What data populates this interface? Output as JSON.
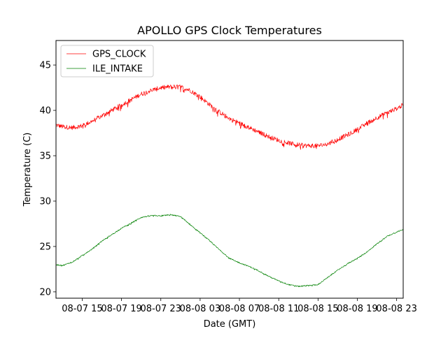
{
  "chart_data": {
    "type": "line",
    "title": "APOLLO GPS Clock Temperatures",
    "xlabel": "Date (GMT)",
    "ylabel": "Temperature (C)",
    "xlim": [
      "08-07 12:20",
      "08-08 23:40"
    ],
    "ylim": [
      19.3,
      47.7
    ],
    "x_ticks": [
      {
        "t": "08-07 15:00",
        "label": "08-07 15"
      },
      {
        "t": "08-07 19:00",
        "label": "08-07 19"
      },
      {
        "t": "08-07 23:00",
        "label": "08-07 23"
      },
      {
        "t": "08-08 03:00",
        "label": "08-08 03"
      },
      {
        "t": "08-08 07:00",
        "label": "08-08 07"
      },
      {
        "t": "08-08 11:00",
        "label": "08-08 11"
      },
      {
        "t": "08-08 15:00",
        "label": "08-08 15"
      },
      {
        "t": "08-08 19:00",
        "label": "08-08 19"
      },
      {
        "t": "08-08 23:00",
        "label": "08-08 23"
      }
    ],
    "y_ticks": [
      20,
      25,
      30,
      35,
      40,
      45
    ],
    "grid": false,
    "legend": "top-left",
    "series": [
      {
        "name": "GPS_CLOCK",
        "color": "#ff0000",
        "noise": 0.5,
        "x": [
          "08-07 12:20",
          "08-07 13:00",
          "08-07 14:00",
          "08-07 15:00",
          "08-07 16:00",
          "08-07 17:00",
          "08-07 18:00",
          "08-07 19:00",
          "08-07 20:00",
          "08-07 21:00",
          "08-07 22:00",
          "08-07 23:00",
          "08-08 00:00",
          "08-08 01:00",
          "08-08 02:00",
          "08-08 03:00",
          "08-08 04:00",
          "08-08 05:00",
          "08-08 06:00",
          "08-08 07:00",
          "08-08 08:00",
          "08-08 09:00",
          "08-08 10:00",
          "08-08 11:00",
          "08-08 12:00",
          "08-08 13:00",
          "08-08 14:00",
          "08-08 15:00",
          "08-08 16:00",
          "08-08 17:00",
          "08-08 18:00",
          "08-08 19:00",
          "08-08 20:00",
          "08-08 21:00",
          "08-08 22:00",
          "08-08 23:00",
          "08-08 23:40"
        ],
        "y": [
          38.4,
          38.2,
          38.1,
          38.3,
          38.8,
          39.4,
          40.0,
          40.6,
          41.2,
          41.8,
          42.2,
          42.5,
          42.6,
          42.6,
          42.2,
          41.5,
          40.6,
          39.8,
          39.1,
          38.6,
          38.1,
          37.6,
          37.1,
          36.7,
          36.4,
          36.2,
          36.1,
          36.1,
          36.3,
          36.8,
          37.3,
          37.9,
          38.6,
          39.2,
          39.7,
          40.2,
          40.6
        ]
      },
      {
        "name": "ILE_INTAKE",
        "color": "#008000",
        "noise": 0.12,
        "x": [
          "08-07 12:20",
          "08-07 13:00",
          "08-07 14:00",
          "08-07 15:00",
          "08-07 16:00",
          "08-07 17:00",
          "08-07 18:00",
          "08-07 19:00",
          "08-07 20:00",
          "08-07 21:00",
          "08-07 22:00",
          "08-07 23:00",
          "08-08 00:00",
          "08-08 01:00",
          "08-08 02:00",
          "08-08 03:00",
          "08-08 04:00",
          "08-08 05:00",
          "08-08 06:00",
          "08-08 07:00",
          "08-08 08:00",
          "08-08 09:00",
          "08-08 10:00",
          "08-08 11:00",
          "08-08 12:00",
          "08-08 13:00",
          "08-08 14:00",
          "08-08 15:00",
          "08-08 16:00",
          "08-08 17:00",
          "08-08 18:00",
          "08-08 19:00",
          "08-08 20:00",
          "08-08 21:00",
          "08-08 22:00",
          "08-08 23:00",
          "08-08 23:40"
        ],
        "y": [
          23.0,
          22.9,
          23.3,
          24.0,
          24.7,
          25.6,
          26.3,
          27.0,
          27.6,
          28.2,
          28.4,
          28.4,
          28.5,
          28.3,
          27.4,
          26.5,
          25.6,
          24.6,
          23.7,
          23.2,
          22.8,
          22.3,
          21.7,
          21.2,
          20.8,
          20.6,
          20.7,
          20.8,
          21.6,
          22.4,
          23.1,
          23.7,
          24.4,
          25.3,
          26.1,
          26.6,
          26.9
        ]
      }
    ]
  }
}
